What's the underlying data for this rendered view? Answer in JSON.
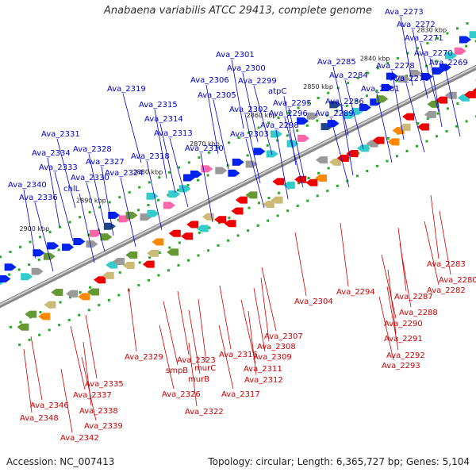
{
  "title": "Anabaena variabilis ATCC 29413, complete genome",
  "footer": {
    "accession": "Accession: NC_007413",
    "topology": "Topology: circular; Length: 6,365,727 bp; Genes: 5,104"
  },
  "scale_labels": [
    "2830 kbp",
    "2840 kbp",
    "2850 kbp",
    "2860 kbp",
    "2870 kbp",
    "2880 kbp",
    "2890 kbp",
    "2900 kbp"
  ],
  "top_strand_labels": [
    "Ava_2273",
    "Ava_2272",
    "Ava_2271",
    "Ava_2270",
    "Ava_2269",
    "Ava_2276",
    "Ava_2278",
    "Ava_2285",
    "Ava_2284",
    "Ava_2286",
    "Ava_2281",
    "Ava_2289",
    "Ava_2301",
    "Ava_2300",
    "Ava_2299",
    "atpC",
    "Ava_2295",
    "Ava_2296",
    "Ava_2298",
    "Ava_2302",
    "Ava_2303",
    "Ava_2306",
    "Ava_2305",
    "Ava_2319",
    "Ava_2315",
    "Ava_2314",
    "Ava_2313",
    "Ava_2310",
    "Ava_2318",
    "Ava_2331",
    "Ava_2334",
    "Ava_2328",
    "Ava_2333",
    "Ava_2327",
    "Ava_2324",
    "Ava_2330",
    "Ava_2340",
    "chlL",
    "Ava_2336"
  ],
  "bottom_strand_labels": [
    "Ava_2283",
    "Ava_2280",
    "Ava_2282",
    "Ava_2287",
    "Ava_2288",
    "Ava_2290",
    "Ava_2291",
    "Ava_2292",
    "Ava_2293",
    "Ava_2294",
    "Ava_2304",
    "Ava_2307",
    "Ava_2308",
    "Ava_2309",
    "Ava_2311",
    "Ava_2312",
    "Ava_2316",
    "Ava_2317",
    "Ava_2329",
    "Ava_2323",
    "smpB",
    "murC",
    "murB",
    "Ava_2326",
    "Ava_2322",
    "Ava_2335",
    "Ava_2337",
    "Ava_2338",
    "Ava_2346",
    "Ava_2339",
    "Ava_2348",
    "Ava_2342"
  ],
  "colors": {
    "top_label": "#0000cc",
    "bottom_label": "#cc0000",
    "top_gene": "#0022ee",
    "bottom_gene": "#ee0000",
    "backbone": "#888888",
    "tick": "#22aa22"
  }
}
